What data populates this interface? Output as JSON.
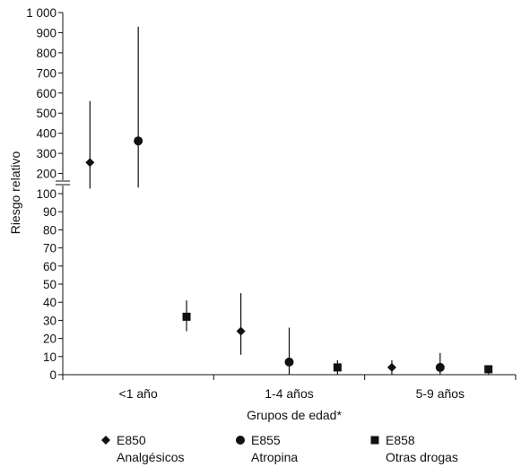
{
  "chart_data": {
    "type": "scatter",
    "subtype": "point estimates with error bars (range bars), broken y axis",
    "title": "",
    "xlabel": "Grupos de edad*",
    "ylabel": "Riesgo relativo",
    "categories": [
      "<1 año",
      "1-4 años",
      "5-9 años"
    ],
    "y_axis": {
      "broken": true,
      "lower_segment": {
        "range": [
          0,
          100
        ],
        "ticks": [
          "0",
          "10",
          "20",
          "30",
          "40",
          "50",
          "60",
          "70",
          "80",
          "90",
          "100"
        ]
      },
      "upper_segment": {
        "range": [
          100,
          1000
        ],
        "ticks": [
          "100",
          "200",
          "300",
          "400",
          "500",
          "600",
          "700",
          "800",
          "900",
          "1 000"
        ]
      }
    },
    "grid": false,
    "legend_position": "bottom",
    "series": [
      {
        "code": "E850",
        "name": "Analgésicos",
        "marker": "diamond",
        "values": [
          255,
          24,
          4
        ],
        "lower": [
          125,
          11,
          0
        ],
        "upper": [
          560,
          45,
          8
        ]
      },
      {
        "code": "E855",
        "name": "Atropina",
        "marker": "circle",
        "values": [
          362,
          7,
          4
        ],
        "lower": [
          130,
          0,
          0
        ],
        "upper": [
          930,
          26,
          12
        ]
      },
      {
        "code": "E858",
        "name": "Otras drogas",
        "marker": "square",
        "values": [
          32,
          4,
          3
        ],
        "lower": [
          24,
          0,
          0
        ],
        "upper": [
          41,
          8,
          5
        ]
      }
    ]
  }
}
